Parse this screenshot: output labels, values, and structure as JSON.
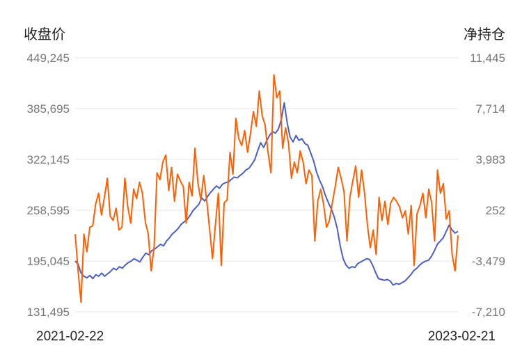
{
  "chart_data": {
    "type": "line",
    "left_axis_title": "收盘价",
    "right_axis_title": "净持仓",
    "left_ticks": [
      "449,245",
      "385,695",
      "322,145",
      "258,595",
      "195,045",
      "131,495"
    ],
    "right_ticks": [
      "11,445",
      "7,714",
      "3,983",
      "252",
      "-3,479",
      "-7,210"
    ],
    "x_start_label": "2021-02-22",
    "x_end_label": "2023-02-21",
    "ylim_left": [
      131495,
      449245
    ],
    "ylim_right": [
      -7210,
      11445
    ],
    "grid": true,
    "series": [
      {
        "axis": "left",
        "color": "#4a5fc1",
        "values": [
          195045,
          191000,
          180000,
          176000,
          174000,
          177000,
          173000,
          178000,
          176000,
          180000,
          176000,
          179000,
          182000,
          186000,
          184000,
          188000,
          186000,
          190000,
          193000,
          195000,
          198000,
          196000,
          194000,
          200000,
          205000,
          203000,
          208000,
          210000,
          213000,
          216000,
          214000,
          220000,
          224000,
          229000,
          232000,
          236000,
          241000,
          244000,
          247000,
          252000,
          258000,
          262000,
          266000,
          274000,
          270000,
          276000,
          281000,
          285000,
          289000,
          286000,
          291000,
          293000,
          294000,
          297000,
          300000,
          299000,
          302000,
          305000,
          309000,
          311000,
          316000,
          322000,
          333000,
          343000,
          337000,
          345000,
          352000,
          357000,
          355000,
          360000,
          372000,
          393000,
          368000,
          350000,
          344000,
          352000,
          346000,
          348000,
          342000,
          340000,
          330000,
          320000,
          306000,
          296000,
          288000,
          277000,
          268000,
          260000,
          250000,
          236000,
          214000,
          198000,
          190000,
          186000,
          188000,
          187000,
          192000,
          194000,
          196000,
          198000,
          197000,
          190000,
          181000,
          173000,
          172000,
          171000,
          172000,
          170000,
          165000,
          167000,
          166000,
          168000,
          170000,
          174000,
          178000,
          183000,
          186000,
          190000,
          193000,
          195000,
          196000,
          201000,
          208000,
          216000,
          220000,
          224000,
          232000,
          240000,
          234000,
          230000,
          232000
        ]
      },
      {
        "axis": "right",
        "color": "#ff5f00",
        "values": [
          -1500,
          -4200,
          -6500,
          -1500,
          -2800,
          -1000,
          -900,
          700,
          1500,
          -100,
          1200,
          2600,
          -200,
          -500,
          400,
          -1200,
          -1000,
          2600,
          500,
          -700,
          1800,
          1100,
          2300,
          1500,
          -600,
          -1500,
          -4200,
          -2500,
          3000,
          2500,
          3800,
          4300,
          1700,
          3400,
          900,
          2900,
          2400,
          2000,
          -700,
          2300,
          1300,
          4800,
          2300,
          1000,
          2800,
          1000,
          -1100,
          -3300,
          -800,
          1500,
          -3800,
          800,
          1000,
          4500,
          2900,
          7000,
          5500,
          5000,
          6100,
          4500,
          5900,
          7500,
          6400,
          9000,
          7200,
          6500,
          4500,
          3000,
          10200,
          8500,
          9000,
          4800,
          6300,
          5200,
          2600,
          3800,
          3000,
          4600,
          3800,
          2200,
          3200,
          2800,
          -2000,
          900,
          1800,
          700,
          -1000,
          -500,
          800,
          2000,
          3400,
          2600,
          1600,
          -2000,
          1200,
          2400,
          3500,
          1200,
          3200,
          1600,
          -800,
          -2500,
          -1200,
          -3000,
          1200,
          -500,
          900,
          -800,
          800,
          1200,
          900,
          500,
          -300,
          200,
          -1500,
          600,
          -3800,
          0,
          600,
          1500,
          -300,
          1800,
          800,
          -2000,
          3200,
          1500,
          2200,
          -400,
          200,
          -3000,
          -4200,
          -1600
        ]
      }
    ]
  }
}
